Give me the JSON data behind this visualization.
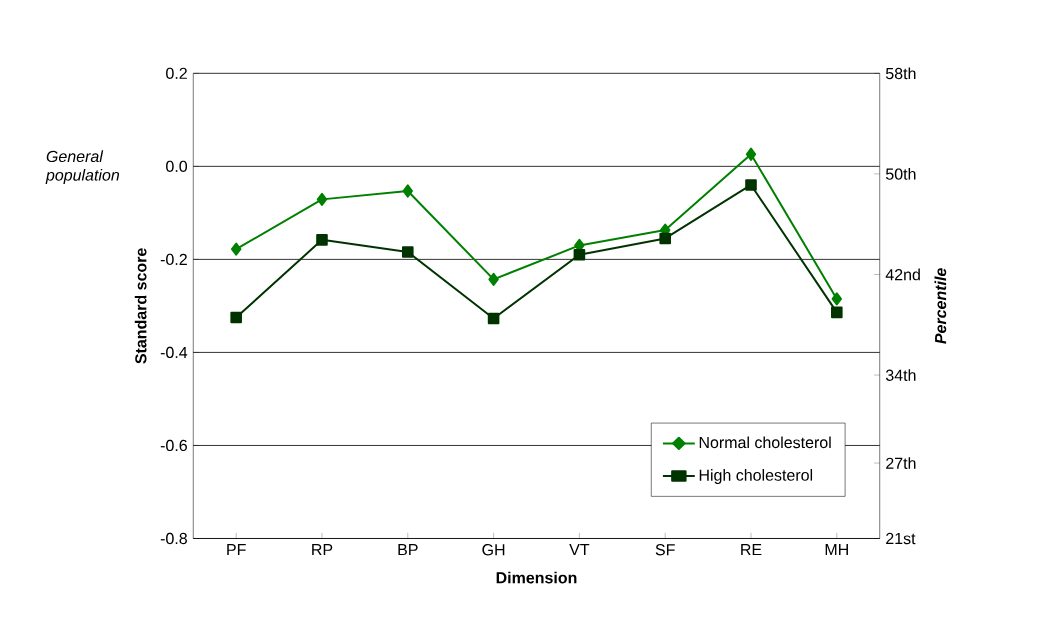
{
  "chart_data": {
    "type": "line",
    "xlabel": "Dimension",
    "ylabel": "Standard score",
    "y2label": "*Percentile*",
    "categories": [
      "PF",
      "RP",
      "BP",
      "GH",
      "VT",
      "SF",
      "RE",
      "MH"
    ],
    "series": [
      {
        "name": "Normal cholesterol",
        "color": "#008000",
        "marker": "diamond",
        "values": [
          -0.178,
          -0.071,
          -0.053,
          -0.243,
          -0.17,
          -0.137,
          0.026,
          -0.285
        ]
      },
      {
        "name": "High cholesterol",
        "color": "#003300",
        "marker": "square",
        "values": [
          -0.325,
          -0.158,
          -0.184,
          -0.327,
          -0.19,
          -0.155,
          -0.04,
          -0.314
        ]
      }
    ],
    "ylim": [
      -0.8,
      0.2
    ],
    "yticks": [
      -0.8,
      -0.6,
      -0.4,
      -0.2,
      {
        "value": 0,
        "label": "0.0"
      },
      0.2
    ],
    "y2lim": [
      21,
      58
    ],
    "y2ticks": [
      {
        "value": 21,
        "label": "21st"
      },
      {
        "value": 27,
        "label": "27th"
      },
      {
        "value": 34,
        "label": "34th"
      },
      {
        "value": 42,
        "label": "42nd"
      },
      {
        "value": 50,
        "label": "50th"
      },
      {
        "value": 58,
        "label": "58th"
      }
    ],
    "grid": "y",
    "legend": "bottom right",
    "line_style": "solid",
    "annotations": [
      "*General population*"
    ]
  }
}
